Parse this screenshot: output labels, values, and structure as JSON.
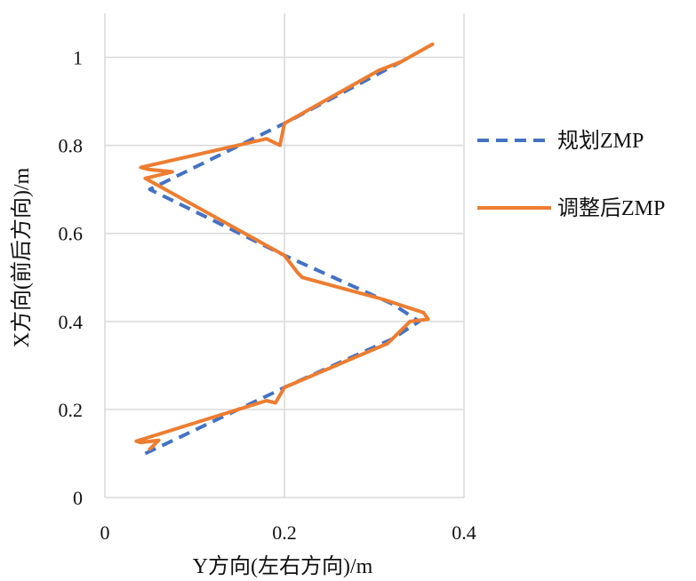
{
  "chart_data": {
    "type": "line",
    "xlabel": "Y方向(左右方向)/m",
    "ylabel": "X方向(前后方向)/m",
    "xlim": [
      0,
      0.4
    ],
    "ylim": [
      0,
      1.1
    ],
    "xticks": [
      "0",
      "0.2",
      "0.4"
    ],
    "yticks": [
      "0",
      "0.2",
      "0.4",
      "0.6",
      "0.8",
      "1"
    ],
    "grid": true,
    "legend_position": "right",
    "series": [
      {
        "name": "规划ZMP",
        "style": "dashed",
        "color": "#4472C4",
        "points": [
          [
            0.045,
            0.1
          ],
          [
            0.19,
            0.24
          ],
          [
            0.2,
            0.25
          ],
          [
            0.32,
            0.36
          ],
          [
            0.35,
            0.4
          ],
          [
            0.32,
            0.44
          ],
          [
            0.2,
            0.55
          ],
          [
            0.19,
            0.56
          ],
          [
            0.05,
            0.7
          ],
          [
            0.19,
            0.84
          ],
          [
            0.2,
            0.85
          ],
          [
            0.33,
            0.99
          ]
        ]
      },
      {
        "name": "调整后ZMP",
        "style": "solid",
        "color": "#ED7D31",
        "points": [
          [
            0.05,
            0.11
          ],
          [
            0.06,
            0.13
          ],
          [
            0.04,
            0.125
          ],
          [
            0.035,
            0.128
          ],
          [
            0.18,
            0.22
          ],
          [
            0.19,
            0.215
          ],
          [
            0.2,
            0.25
          ],
          [
            0.315,
            0.35
          ],
          [
            0.33,
            0.38
          ],
          [
            0.34,
            0.4
          ],
          [
            0.36,
            0.405
          ],
          [
            0.355,
            0.42
          ],
          [
            0.31,
            0.45
          ],
          [
            0.22,
            0.5
          ],
          [
            0.215,
            0.51
          ],
          [
            0.2,
            0.55
          ],
          [
            0.045,
            0.725
          ],
          [
            0.075,
            0.74
          ],
          [
            0.05,
            0.745
          ],
          [
            0.04,
            0.75
          ],
          [
            0.18,
            0.815
          ],
          [
            0.195,
            0.8
          ],
          [
            0.2,
            0.85
          ],
          [
            0.305,
            0.97
          ],
          [
            0.33,
            0.99
          ],
          [
            0.365,
            1.03
          ]
        ]
      }
    ]
  }
}
